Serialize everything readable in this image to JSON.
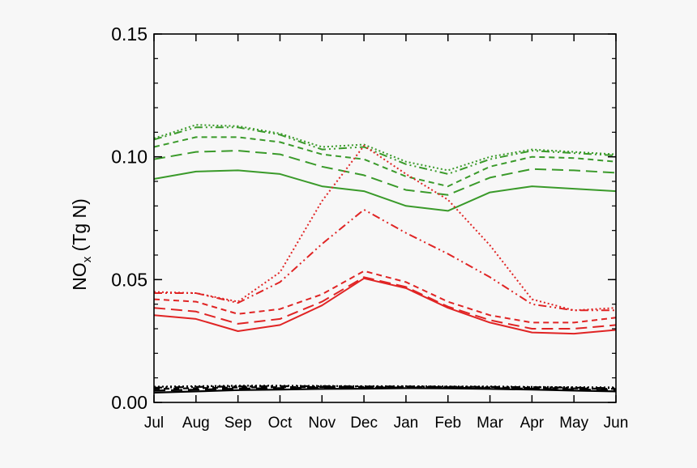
{
  "chart_data": {
    "type": "line",
    "title": "",
    "xlabel": "",
    "ylabel": {
      "main": "NO",
      "sub": "x",
      "rest": " (Tg N)"
    },
    "categories": [
      "Jul",
      "Aug",
      "Sep",
      "Oct",
      "Nov",
      "Dec",
      "Jan",
      "Feb",
      "Mar",
      "Apr",
      "May",
      "Jun"
    ],
    "ylim": [
      0.0,
      0.15
    ],
    "yticks": [
      {
        "value": 0.0,
        "label": "0.00"
      },
      {
        "value": 0.05,
        "label": "0.05"
      },
      {
        "value": 0.1,
        "label": "0.10"
      },
      {
        "value": 0.15,
        "label": "0.15"
      }
    ],
    "colors": {
      "green": "#3a9a2a",
      "red": "#e02424",
      "black": "#000000",
      "frame": "#000000",
      "background": "#f7f7f7"
    },
    "series": [
      {
        "name": "green-solid",
        "color": "green",
        "dash": "solid",
        "values": [
          0.091,
          0.094,
          0.0945,
          0.093,
          0.088,
          0.086,
          0.08,
          0.078,
          0.0855,
          0.088,
          0.087,
          0.086
        ]
      },
      {
        "name": "green-longdash",
        "color": "green",
        "dash": "longdash",
        "values": [
          0.099,
          0.102,
          0.1025,
          0.101,
          0.096,
          0.0925,
          0.0865,
          0.0845,
          0.0915,
          0.095,
          0.0945,
          0.0935
        ]
      },
      {
        "name": "green-shortdash",
        "color": "green",
        "dash": "shortdash",
        "values": [
          0.104,
          0.108,
          0.108,
          0.106,
          0.101,
          0.099,
          0.092,
          0.088,
          0.096,
          0.1,
          0.0995,
          0.098
        ]
      },
      {
        "name": "green-dashdotdot",
        "color": "green",
        "dash": "dashdotdot",
        "values": [
          0.107,
          0.112,
          0.112,
          0.109,
          0.103,
          0.104,
          0.097,
          0.093,
          0.099,
          0.1025,
          0.1015,
          0.1005
        ]
      },
      {
        "name": "green-dotted",
        "color": "green",
        "dash": "dotted",
        "values": [
          0.1075,
          0.113,
          0.1125,
          0.1095,
          0.104,
          0.105,
          0.098,
          0.0945,
          0.1,
          0.103,
          0.102,
          0.101
        ]
      },
      {
        "name": "red-solid",
        "color": "red",
        "dash": "solid",
        "values": [
          0.0355,
          0.034,
          0.029,
          0.0315,
          0.0395,
          0.0505,
          0.0465,
          0.0385,
          0.0325,
          0.0285,
          0.028,
          0.0295
        ]
      },
      {
        "name": "red-longdash",
        "color": "red",
        "dash": "longdash",
        "values": [
          0.0385,
          0.037,
          0.032,
          0.034,
          0.041,
          0.051,
          0.047,
          0.039,
          0.0335,
          0.03,
          0.03,
          0.0315
        ]
      },
      {
        "name": "red-shortdash",
        "color": "red",
        "dash": "shortdash",
        "values": [
          0.042,
          0.041,
          0.036,
          0.038,
          0.044,
          0.0535,
          0.049,
          0.041,
          0.0355,
          0.0325,
          0.0325,
          0.0345
        ]
      },
      {
        "name": "red-dashdotdot",
        "color": "red",
        "dash": "dashdotdot",
        "values": [
          0.0445,
          0.0445,
          0.0405,
          0.049,
          0.0645,
          0.0785,
          0.069,
          0.0605,
          0.051,
          0.04,
          0.0375,
          0.0375
        ]
      },
      {
        "name": "red-dotted",
        "color": "red",
        "dash": "dotted",
        "values": [
          0.045,
          0.0445,
          0.041,
          0.053,
          0.082,
          0.1045,
          0.093,
          0.0825,
          0.064,
          0.042,
          0.0375,
          0.0385
        ]
      },
      {
        "name": "black-solid",
        "color": "black",
        "dash": "solid",
        "values": [
          0.004,
          0.0045,
          0.005,
          0.0052,
          0.0055,
          0.0056,
          0.0058,
          0.0057,
          0.0055,
          0.0052,
          0.0048,
          0.0045
        ]
      },
      {
        "name": "black-longdash",
        "color": "black",
        "dash": "longdash",
        "values": [
          0.0048,
          0.0052,
          0.0056,
          0.0058,
          0.006,
          0.006,
          0.0061,
          0.006,
          0.0058,
          0.0056,
          0.0053,
          0.005
        ]
      },
      {
        "name": "black-shortdash",
        "color": "black",
        "dash": "shortdash",
        "values": [
          0.0055,
          0.0058,
          0.0061,
          0.0062,
          0.0063,
          0.0063,
          0.0063,
          0.0062,
          0.0061,
          0.0059,
          0.0057,
          0.0055
        ]
      },
      {
        "name": "black-dashdotdot",
        "color": "black",
        "dash": "dashdotdot",
        "values": [
          0.006,
          0.0063,
          0.0065,
          0.0066,
          0.0066,
          0.0065,
          0.0065,
          0.0064,
          0.0063,
          0.0062,
          0.006,
          0.0058
        ]
      },
      {
        "name": "black-dotted",
        "color": "black",
        "dash": "dotted",
        "values": [
          0.0064,
          0.0066,
          0.0068,
          0.0068,
          0.0067,
          0.0066,
          0.0066,
          0.0065,
          0.0065,
          0.0063,
          0.0062,
          0.0061
        ]
      }
    ]
  }
}
